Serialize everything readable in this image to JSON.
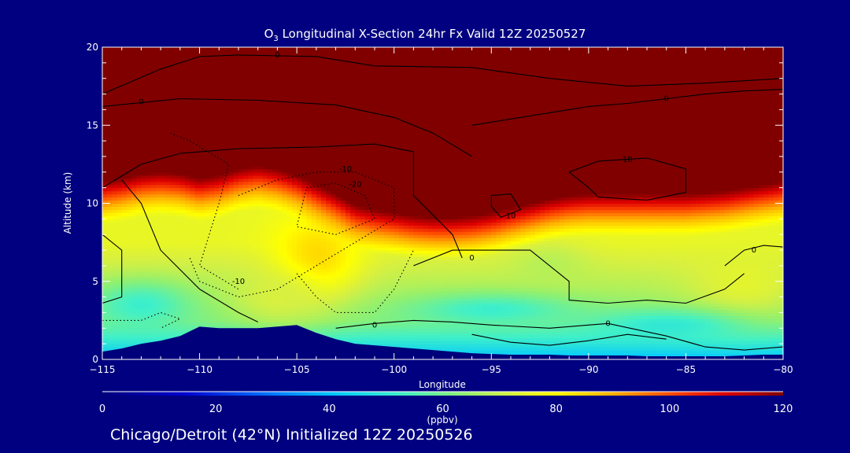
{
  "title": {
    "pre": "O",
    "sub": "3",
    "post": " Longitudinal X-Section 24hr  Fx Valid 12Z 20250527"
  },
  "footer": "Chicago/Detroit (42°N) Initialized 12Z 20250526",
  "chart_data": {
    "type": "heatmap",
    "xlabel": "Longitude",
    "ylabel": "Altitude (km)",
    "xlim": [
      -115,
      -80
    ],
    "ylim": [
      0,
      20
    ],
    "x_ticks": [
      -115,
      -110,
      -105,
      -100,
      -95,
      -90,
      -85,
      -80
    ],
    "x_tick_labels": [
      "−115",
      "−110",
      "−105",
      "−100",
      "−95",
      "−90",
      "−85",
      "−80"
    ],
    "y_ticks": [
      0,
      5,
      10,
      15,
      20
    ],
    "y_tick_labels": [
      "0",
      "5",
      "10",
      "15",
      "20"
    ],
    "colorbar": {
      "label": "(ppbv)",
      "range": [
        0,
        120
      ],
      "ticks": [
        0,
        20,
        40,
        60,
        80,
        100,
        120
      ],
      "tick_labels": [
        "0",
        "20",
        "40",
        "60",
        "80",
        "100",
        "120"
      ]
    },
    "background_field": {
      "boundary_layer": {
        "value": 40,
        "top_km": 2.5
      },
      "mid_troposphere": {
        "value": 62
      },
      "upper_troposphere": {
        "value": 75
      }
    },
    "tropopause_km": [
      [
        -115,
        10.8
      ],
      [
        -114,
        11.0
      ],
      [
        -113,
        11.3
      ],
      [
        -112,
        11.4
      ],
      [
        -111,
        11.3
      ],
      [
        -110,
        11.0
      ],
      [
        -109,
        11.2
      ],
      [
        -108,
        11.6
      ],
      [
        -107,
        11.8
      ],
      [
        -106,
        11.6
      ],
      [
        -105,
        11.2
      ],
      [
        -104,
        10.6
      ],
      [
        -103,
        10.0
      ],
      [
        -102,
        9.3
      ],
      [
        -101,
        9.0
      ],
      [
        -100,
        8.8
      ],
      [
        -99,
        8.6
      ],
      [
        -98,
        8.5
      ],
      [
        -97,
        8.5
      ],
      [
        -96,
        8.6
      ],
      [
        -95,
        8.8
      ],
      [
        -94,
        9.1
      ],
      [
        -93,
        9.4
      ],
      [
        -92,
        9.7
      ],
      [
        -91,
        9.9
      ],
      [
        -90,
        10.0
      ],
      [
        -89,
        10.0
      ],
      [
        -88,
        10.0
      ],
      [
        -87,
        10.0
      ],
      [
        -86,
        10.0
      ],
      [
        -85,
        10.0
      ],
      [
        -84,
        10.1
      ],
      [
        -83,
        10.2
      ],
      [
        -82,
        10.4
      ],
      [
        -81,
        10.6
      ],
      [
        -80,
        10.8
      ]
    ],
    "field_features": [
      {
        "lon": -104,
        "alt": 6.5,
        "rx": 2.2,
        "ry": 2.6,
        "value": 85
      },
      {
        "lon": -106,
        "alt": 4.0,
        "rx": 2.5,
        "ry": 1.8,
        "value": 72
      },
      {
        "lon": -82,
        "alt": 5.0,
        "rx": 3.0,
        "ry": 2.5,
        "value": 74
      },
      {
        "lon": -92,
        "alt": 6.0,
        "rx": 2.0,
        "ry": 1.5,
        "value": 68
      },
      {
        "lon": -95,
        "alt": 3.2,
        "rx": 4.0,
        "ry": 1.0,
        "value": 52
      },
      {
        "lon": -86,
        "alt": 2.2,
        "rx": 4.0,
        "ry": 1.0,
        "value": 50
      },
      {
        "lon": -113,
        "alt": 3.5,
        "rx": 2.5,
        "ry": 1.5,
        "value": 52
      }
    ],
    "terrain_km": [
      [
        -115,
        0.5
      ],
      [
        -114,
        0.7
      ],
      [
        -113,
        1.0
      ],
      [
        -112,
        1.2
      ],
      [
        -111,
        1.5
      ],
      [
        -110,
        2.1
      ],
      [
        -109,
        2.0
      ],
      [
        -108,
        2.0
      ],
      [
        -107,
        2.0
      ],
      [
        -106,
        2.1
      ],
      [
        -105,
        2.2
      ],
      [
        -104,
        1.7
      ],
      [
        -103,
        1.3
      ],
      [
        -102,
        1.0
      ],
      [
        -101,
        0.9
      ],
      [
        -100,
        0.8
      ],
      [
        -99,
        0.7
      ],
      [
        -98,
        0.6
      ],
      [
        -97,
        0.5
      ],
      [
        -96,
        0.4
      ],
      [
        -95,
        0.35
      ],
      [
        -94,
        0.3
      ],
      [
        -93,
        0.3
      ],
      [
        -92,
        0.3
      ],
      [
        -91,
        0.25
      ],
      [
        -90,
        0.25
      ],
      [
        -89,
        0.25
      ],
      [
        -88,
        0.25
      ],
      [
        -87,
        0.2
      ],
      [
        -86,
        0.2
      ],
      [
        -85,
        0.2
      ],
      [
        -84,
        0.2
      ],
      [
        -83,
        0.2
      ],
      [
        -82,
        0.25
      ],
      [
        -81,
        0.3
      ],
      [
        -80,
        0.3
      ]
    ],
    "contours": [
      {
        "label": "0",
        "dashed": false,
        "label_at": [
          -106,
          19.5
        ],
        "points": [
          [
            -115,
            17.0
          ],
          [
            -112,
            18.6
          ],
          [
            -110,
            19.4
          ],
          [
            -108,
            19.5
          ],
          [
            -104,
            19.4
          ],
          [
            -101,
            18.8
          ],
          [
            -96,
            18.7
          ],
          [
            -92,
            18.0
          ],
          [
            -88,
            17.5
          ],
          [
            -84,
            17.7
          ],
          [
            -80,
            18.0
          ]
        ]
      },
      {
        "label": "0",
        "dashed": false,
        "label_at": [
          -113,
          16.5
        ],
        "points": [
          [
            -115,
            16.2
          ],
          [
            -111,
            16.7
          ],
          [
            -107,
            16.6
          ],
          [
            -103,
            16.3
          ],
          [
            -100,
            15.5
          ],
          [
            -98,
            14.5
          ],
          [
            -96,
            13.0
          ]
        ]
      },
      {
        "label": "0",
        "dashed": false,
        "label_at": [
          -86,
          16.7
        ],
        "points": [
          [
            -96,
            15.0
          ],
          [
            -93,
            15.6
          ],
          [
            -90,
            16.2
          ],
          [
            -88,
            16.4
          ],
          [
            -86,
            16.7
          ],
          [
            -84,
            17.0
          ],
          [
            -82,
            17.2
          ],
          [
            -80,
            17.3
          ]
        ]
      },
      {
        "label": "",
        "dashed": false,
        "label_at": [
          0,
          0
        ],
        "points": [
          [
            -115,
            11.0
          ],
          [
            -113,
            12.5
          ],
          [
            -111,
            13.2
          ],
          [
            -108,
            13.5
          ],
          [
            -104,
            13.6
          ],
          [
            -101,
            13.8
          ],
          [
            -99,
            13.3
          ],
          [
            -99,
            10.5
          ],
          [
            -97,
            8.0
          ],
          [
            -96.5,
            6.5
          ]
        ]
      },
      {
        "label": "0",
        "dashed": false,
        "label_at": [
          -96,
          6.5
        ],
        "points": [
          [
            -99,
            6.0
          ],
          [
            -97,
            7.0
          ],
          [
            -95,
            7.0
          ],
          [
            -93,
            7.0
          ],
          [
            -92,
            6.0
          ],
          [
            -91,
            5.0
          ],
          [
            -91,
            3.8
          ],
          [
            -89,
            3.6
          ],
          [
            -87,
            3.8
          ],
          [
            -85,
            3.6
          ],
          [
            -83,
            4.5
          ],
          [
            -82,
            5.5
          ]
        ]
      },
      {
        "label": "10",
        "dashed": false,
        "label_at": [
          -88,
          12.8
        ],
        "points": [
          [
            -90,
            11.0
          ],
          [
            -91,
            12.0
          ],
          [
            -89.5,
            12.7
          ],
          [
            -87,
            12.9
          ],
          [
            -85,
            12.2
          ],
          [
            -85,
            10.7
          ],
          [
            -87,
            10.2
          ],
          [
            -89.5,
            10.4
          ],
          [
            -90,
            11.0
          ]
        ]
      },
      {
        "label": "10",
        "dashed": false,
        "label_at": [
          -94,
          9.2
        ],
        "points": [
          [
            -95,
            9.8
          ],
          [
            -95,
            10.5
          ],
          [
            -94,
            10.6
          ],
          [
            -93.5,
            9.6
          ],
          [
            -94.5,
            9.1
          ],
          [
            -95,
            9.8
          ]
        ]
      },
      {
        "label": "",
        "dashed": false,
        "label_at": [
          0,
          0
        ],
        "points": [
          [
            -115,
            8.0
          ],
          [
            -114,
            7.0
          ],
          [
            -114,
            4.0
          ],
          [
            -115,
            3.6
          ]
        ]
      },
      {
        "label": "",
        "dashed": false,
        "label_at": [
          0,
          0
        ],
        "points": [
          [
            -114,
            11.5
          ],
          [
            -113,
            10.0
          ],
          [
            -112,
            7.0
          ],
          [
            -110,
            4.5
          ],
          [
            -108,
            3.0
          ],
          [
            -107,
            2.4
          ]
        ]
      },
      {
        "label": "0",
        "dashed": false,
        "label_at": [
          -101,
          2.2
        ],
        "points": [
          [
            -103,
            2.0
          ],
          [
            -101,
            2.3
          ],
          [
            -99,
            2.5
          ],
          [
            -97,
            2.4
          ],
          [
            -95,
            2.2
          ],
          [
            -92,
            2.0
          ],
          [
            -89,
            2.3
          ],
          [
            -86,
            1.5
          ],
          [
            -84,
            0.8
          ],
          [
            -82,
            0.6
          ],
          [
            -80,
            0.8
          ]
        ]
      },
      {
        "label": "0",
        "dashed": false,
        "label_at": [
          -89,
          2.3
        ],
        "points": [
          [
            -96,
            1.6
          ],
          [
            -94,
            1.1
          ],
          [
            -92,
            0.9
          ],
          [
            -90,
            1.2
          ],
          [
            -88,
            1.6
          ],
          [
            -86,
            1.3
          ]
        ]
      },
      {
        "label": "0",
        "dashed": false,
        "label_at": [
          -81.5,
          7.0
        ],
        "points": [
          [
            -83,
            6.0
          ],
          [
            -82,
            7.0
          ],
          [
            -81,
            7.3
          ],
          [
            -80,
            7.2
          ]
        ]
      },
      {
        "label": "-10",
        "dashed": true,
        "label_at": [
          -102.5,
          12.2
        ],
        "points": [
          [
            -108,
            10.5
          ],
          [
            -106,
            11.5
          ],
          [
            -104,
            12.0
          ],
          [
            -102,
            12.0
          ],
          [
            -100,
            11.0
          ],
          [
            -100,
            9.0
          ],
          [
            -102,
            7.5
          ],
          [
            -104,
            6.0
          ],
          [
            -106,
            4.5
          ],
          [
            -108,
            4.0
          ],
          [
            -110,
            5.0
          ],
          [
            -110.5,
            6.5
          ]
        ]
      },
      {
        "label": "-20",
        "dashed": true,
        "label_at": [
          -102,
          11.2
        ],
        "points": [
          [
            -104.5,
            11.0
          ],
          [
            -103,
            11.3
          ],
          [
            -101.5,
            10.5
          ],
          [
            -101,
            9.0
          ],
          [
            -103,
            8.0
          ],
          [
            -105,
            8.5
          ],
          [
            -104.5,
            11.0
          ]
        ]
      },
      {
        "label": "-10",
        "dashed": true,
        "label_at": [
          -108,
          5.0
        ],
        "points": [
          [
            -111.5,
            14.5
          ],
          [
            -110.5,
            14.0
          ],
          [
            -108.5,
            12.5
          ],
          [
            -109,
            10.0
          ],
          [
            -109.5,
            8.0
          ],
          [
            -110,
            6.0
          ],
          [
            -108,
            4.5
          ]
        ]
      },
      {
        "label": "",
        "dashed": true,
        "label_at": [
          0,
          0
        ],
        "points": [
          [
            -105,
            5.5
          ],
          [
            -104,
            4.0
          ],
          [
            -103,
            3.0
          ],
          [
            -101,
            3.0
          ],
          [
            -100,
            4.5
          ],
          [
            -99,
            7.0
          ]
        ]
      },
      {
        "label": "",
        "dashed": true,
        "label_at": [
          0,
          0
        ],
        "points": [
          [
            -115,
            2.5
          ],
          [
            -113,
            2.5
          ],
          [
            -112,
            3.0
          ],
          [
            -111,
            2.6
          ],
          [
            -112,
            2.0
          ]
        ]
      }
    ]
  }
}
